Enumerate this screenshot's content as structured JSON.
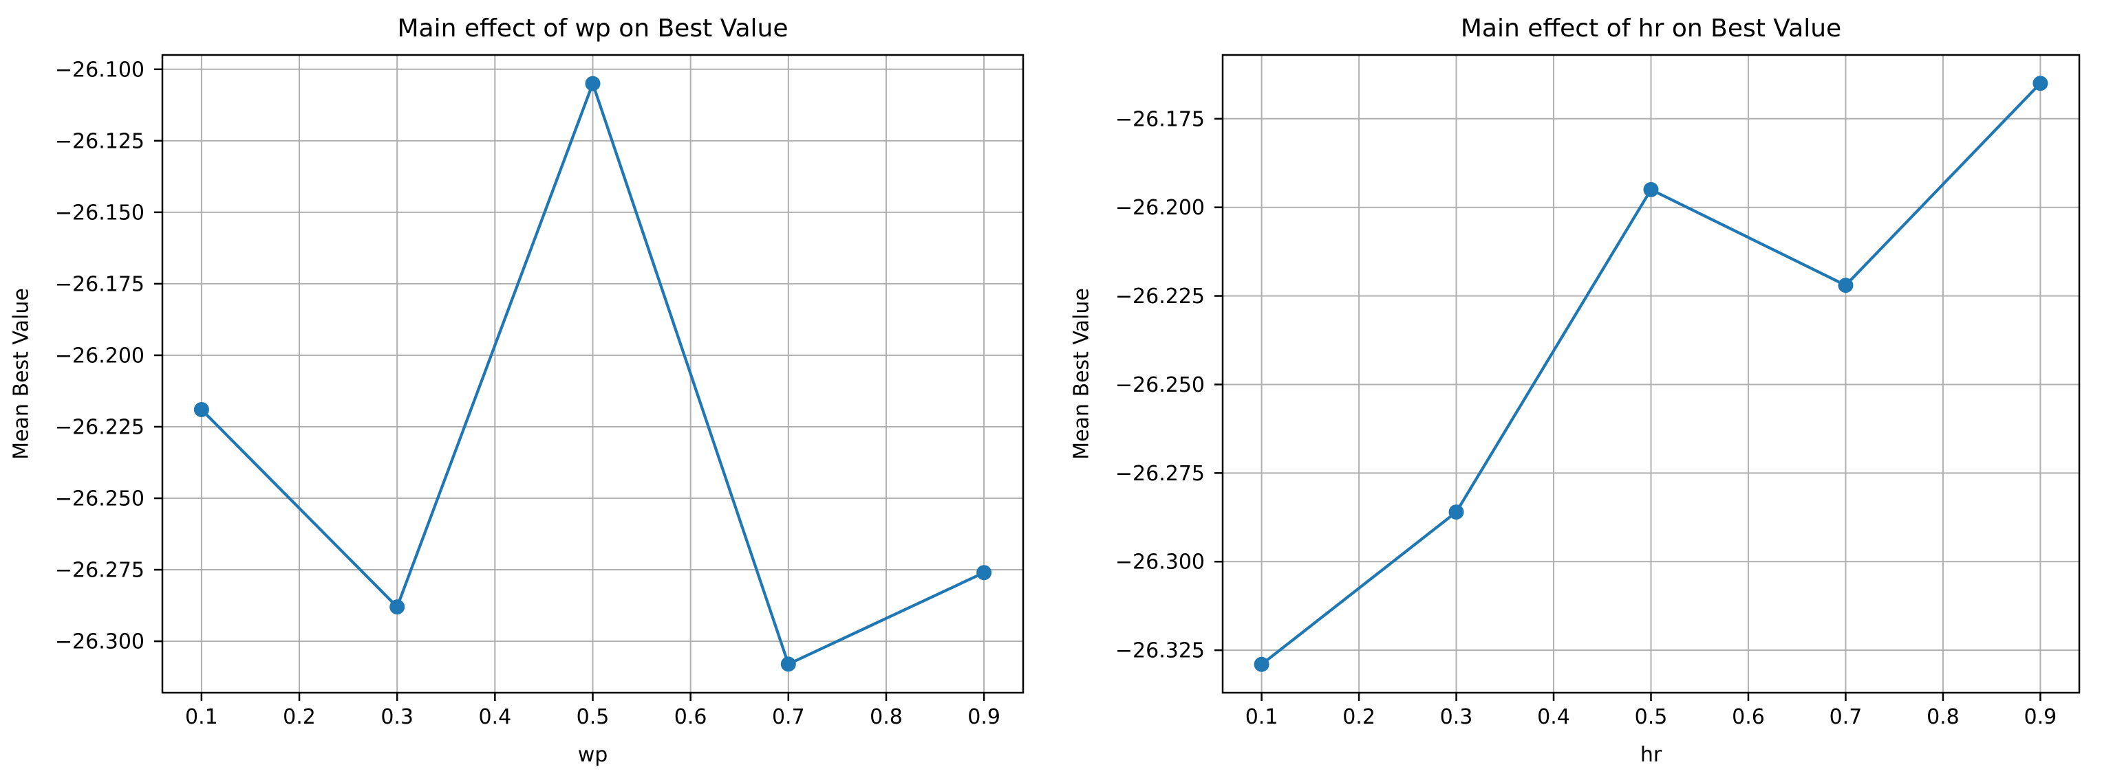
{
  "figure": {
    "background": "#ffffff",
    "grid_color": "#b0b0b0",
    "spine_color": "#000000",
    "text_color": "#000000"
  },
  "chart_data": [
    {
      "type": "line",
      "title": "Main effect of wp on Best Value",
      "xlabel": "wp",
      "ylabel": "Mean Best Value",
      "x": [
        0.1,
        0.3,
        0.5,
        0.7,
        0.9
      ],
      "y": [
        -26.219,
        -26.288,
        -26.105,
        -26.308,
        -26.276
      ],
      "xlim": [
        0.06,
        0.94
      ],
      "ylim": [
        -26.318,
        -26.095
      ],
      "xticks": [
        0.1,
        0.2,
        0.3,
        0.4,
        0.5,
        0.6,
        0.7,
        0.8,
        0.9
      ],
      "xtick_labels": [
        "0.1",
        "0.2",
        "0.3",
        "0.4",
        "0.5",
        "0.6",
        "0.7",
        "0.8",
        "0.9"
      ],
      "yticks": [
        -26.1,
        -26.125,
        -26.15,
        -26.175,
        -26.2,
        -26.225,
        -26.25,
        -26.275,
        -26.3
      ],
      "ytick_labels": [
        "−26.100",
        "−26.125",
        "−26.150",
        "−26.175",
        "−26.200",
        "−26.225",
        "−26.250",
        "−26.275",
        "−26.300"
      ],
      "grid": true,
      "legend": "none",
      "line_color": "#1f77b4",
      "marker": "o"
    },
    {
      "type": "line",
      "title": "Main effect of hr on Best Value",
      "xlabel": "hr",
      "ylabel": "Mean Best Value",
      "x": [
        0.1,
        0.3,
        0.5,
        0.7,
        0.9
      ],
      "y": [
        -26.329,
        -26.286,
        -26.195,
        -26.222,
        -26.165
      ],
      "xlim": [
        0.06,
        0.94
      ],
      "ylim": [
        -26.337,
        -26.157
      ],
      "xticks": [
        0.1,
        0.2,
        0.3,
        0.4,
        0.5,
        0.6,
        0.7,
        0.8,
        0.9
      ],
      "xtick_labels": [
        "0.1",
        "0.2",
        "0.3",
        "0.4",
        "0.5",
        "0.6",
        "0.7",
        "0.8",
        "0.9"
      ],
      "yticks": [
        -26.175,
        -26.2,
        -26.225,
        -26.25,
        -26.275,
        -26.3,
        -26.325
      ],
      "ytick_labels": [
        "−26.175",
        "−26.200",
        "−26.225",
        "−26.250",
        "−26.275",
        "−26.300",
        "−26.325"
      ],
      "grid": true,
      "legend": "none",
      "line_color": "#1f77b4",
      "marker": "o"
    }
  ]
}
